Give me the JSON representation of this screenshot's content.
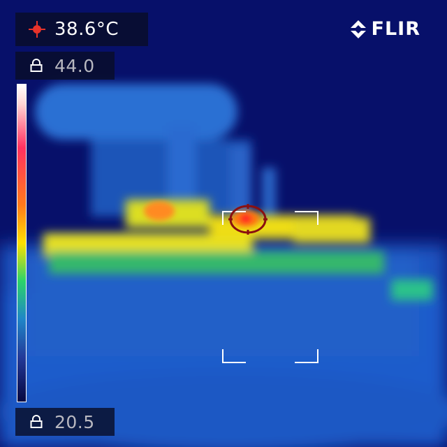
{
  "hud": {
    "spot_temperature": "38.6°C",
    "max_temperature": "44.0",
    "min_temperature": "20.5"
  },
  "brand": {
    "logo_text": "FLIR"
  },
  "palette": {
    "background": "#07106a",
    "hot": "#ff2a2a",
    "warm": "#ffe000",
    "cool": "#1f86c8",
    "scale": "iron-rainbow"
  },
  "icons": {
    "spot": "crosshair-icon",
    "max_lock": "lock-icon",
    "min_lock": "lock-icon",
    "brand": "flir-logo-icon"
  }
}
